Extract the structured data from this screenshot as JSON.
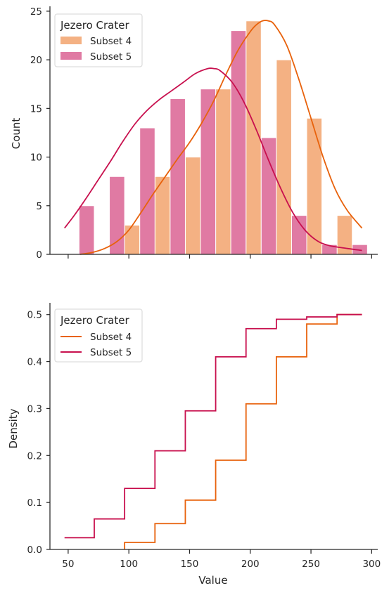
{
  "chart_data": [
    {
      "type": "bar",
      "ylabel": "Count",
      "xlim": [
        35,
        305
      ],
      "ylim": [
        0,
        25.5
      ],
      "yticks": [
        0,
        5,
        10,
        15,
        20,
        25
      ],
      "xticks": [
        50,
        100,
        150,
        200,
        250,
        300
      ],
      "bin_edges": [
        59,
        71.5,
        84,
        96.5,
        109,
        121.5,
        134,
        146.5,
        159,
        171.5,
        184,
        196.5,
        209,
        221.5,
        234,
        246.5,
        259,
        271.5,
        284,
        296.5
      ],
      "legend": {
        "title": "Jezero Crater",
        "position": "upper-left"
      },
      "series": [
        {
          "name": "Subset 4",
          "color": "#f4b183",
          "line_color": "#e8620c",
          "counts": [
            0,
            0,
            0,
            3,
            0,
            8,
            0,
            10,
            0,
            17,
            0,
            24,
            0,
            20,
            0,
            14,
            0,
            4,
            0
          ],
          "kde": [
            [
              60,
              0
            ],
            [
              70,
              0.2
            ],
            [
              80,
              0.6
            ],
            [
              90,
              1.3
            ],
            [
              100,
              2.5
            ],
            [
              110,
              4.3
            ],
            [
              120,
              6.2
            ],
            [
              130,
              8.0
            ],
            [
              140,
              9.8
            ],
            [
              150,
              11.5
            ],
            [
              160,
              13.5
            ],
            [
              170,
              15.8
            ],
            [
              180,
              18.5
            ],
            [
              190,
              21.0
            ],
            [
              200,
              22.9
            ],
            [
              205,
              23.6
            ],
            [
              210,
              24.0
            ],
            [
              215,
              24.0
            ],
            [
              220,
              23.6
            ],
            [
              230,
              21.5
            ],
            [
              240,
              18.0
            ],
            [
              250,
              14.0
            ],
            [
              260,
              10.0
            ],
            [
              270,
              6.7
            ],
            [
              280,
              4.5
            ],
            [
              292,
              2.7
            ]
          ]
        },
        {
          "name": "Subset 5",
          "color": "#e07aa3",
          "line_color": "#c8104e",
          "counts": [
            5,
            0,
            8,
            0,
            13,
            0,
            16,
            0,
            17,
            0,
            23,
            0,
            12,
            0,
            4,
            0,
            1,
            0,
            1
          ],
          "kde": [
            [
              47,
              2.7
            ],
            [
              55,
              4.0
            ],
            [
              65,
              5.8
            ],
            [
              75,
              7.7
            ],
            [
              85,
              9.6
            ],
            [
              95,
              11.6
            ],
            [
              105,
              13.4
            ],
            [
              115,
              14.8
            ],
            [
              125,
              15.9
            ],
            [
              135,
              16.8
            ],
            [
              145,
              17.7
            ],
            [
              155,
              18.6
            ],
            [
              165,
              19.1
            ],
            [
              170,
              19.1
            ],
            [
              175,
              18.9
            ],
            [
              185,
              17.7
            ],
            [
              195,
              15.6
            ],
            [
              205,
              12.8
            ],
            [
              215,
              9.7
            ],
            [
              225,
              6.8
            ],
            [
              235,
              4.3
            ],
            [
              245,
              2.5
            ],
            [
              255,
              1.4
            ],
            [
              265,
              0.9
            ],
            [
              280,
              0.6
            ],
            [
              292,
              0.4
            ]
          ]
        }
      ]
    },
    {
      "type": "line",
      "step": true,
      "xlabel": "Value",
      "ylabel": "Density",
      "xlim": [
        35,
        305
      ],
      "ylim": [
        0,
        0.525
      ],
      "yticks": [
        0.0,
        0.1,
        0.2,
        0.3,
        0.4,
        0.5
      ],
      "xticks": [
        50,
        100,
        150,
        200,
        250,
        300
      ],
      "legend": {
        "title": "Jezero Crater",
        "position": "upper-left"
      },
      "series": [
        {
          "name": "Subset 4",
          "color": "#e8620c",
          "points": [
            [
              96.5,
              0
            ],
            [
              96.5,
              0.015
            ],
            [
              121.5,
              0.015
            ],
            [
              121.5,
              0.055
            ],
            [
              146.5,
              0.055
            ],
            [
              146.5,
              0.105
            ],
            [
              171.5,
              0.105
            ],
            [
              171.5,
              0.19
            ],
            [
              196.5,
              0.19
            ],
            [
              196.5,
              0.31
            ],
            [
              221.5,
              0.31
            ],
            [
              221.5,
              0.41
            ],
            [
              246.5,
              0.41
            ],
            [
              246.5,
              0.48
            ],
            [
              271.5,
              0.48
            ],
            [
              271.5,
              0.5
            ],
            [
              292,
              0.5
            ]
          ]
        },
        {
          "name": "Subset 5",
          "color": "#c8104e",
          "points": [
            [
              47,
              0.025
            ],
            [
              71.5,
              0.025
            ],
            [
              71.5,
              0.065
            ],
            [
              96.5,
              0.065
            ],
            [
              96.5,
              0.13
            ],
            [
              121.5,
              0.13
            ],
            [
              121.5,
              0.21
            ],
            [
              146.5,
              0.21
            ],
            [
              146.5,
              0.295
            ],
            [
              171.5,
              0.295
            ],
            [
              171.5,
              0.41
            ],
            [
              196.5,
              0.41
            ],
            [
              196.5,
              0.47
            ],
            [
              221.5,
              0.47
            ],
            [
              221.5,
              0.49
            ],
            [
              246.5,
              0.49
            ],
            [
              246.5,
              0.495
            ],
            [
              271.5,
              0.495
            ],
            [
              271.5,
              0.5
            ],
            [
              292,
              0.5
            ]
          ]
        }
      ]
    }
  ]
}
